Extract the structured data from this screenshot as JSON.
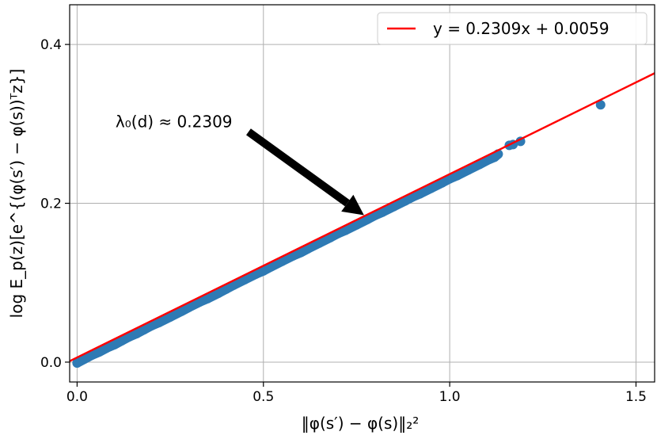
{
  "chart_data": {
    "type": "scatter",
    "title": "",
    "xlabel": "‖φ(s′) − φ(s)‖₂²",
    "ylabel": "log E_p(z)[e^{(φ(s′) − φ(s))ᵀz}]",
    "xlim": [
      -0.02,
      1.55
    ],
    "ylim": [
      -0.025,
      0.45
    ],
    "grid": true,
    "legend_position": "top-right",
    "x_ticks": [
      {
        "value": 0.0,
        "label": "0.0"
      },
      {
        "value": 0.5,
        "label": "0.5"
      },
      {
        "value": 1.0,
        "label": "1.0"
      },
      {
        "value": 1.5,
        "label": "1.5"
      }
    ],
    "y_ticks": [
      {
        "value": 0.0,
        "label": "0.0"
      },
      {
        "value": 0.2,
        "label": "0.2"
      },
      {
        "value": 0.4,
        "label": "0.4"
      }
    ],
    "scatter": {
      "color": "#2e7ab4",
      "x": [
        0.0,
        0.02,
        0.04,
        0.06,
        0.08,
        0.1,
        0.12,
        0.14,
        0.16,
        0.18,
        0.2,
        0.22,
        0.25,
        0.28,
        0.3,
        0.33,
        0.35,
        0.38,
        0.4,
        0.42,
        0.45,
        0.48,
        0.5,
        0.52,
        0.55,
        0.58,
        0.6,
        0.62,
        0.65,
        0.68,
        0.7,
        0.72,
        0.75,
        0.78,
        0.8,
        0.82,
        0.85,
        0.88,
        0.9,
        0.92,
        0.95,
        0.98,
        1.0,
        1.02,
        1.05,
        1.08,
        1.1,
        1.12,
        1.13,
        1.16,
        1.17,
        1.19,
        1.405
      ],
      "y": [
        -0.001,
        0.004,
        0.009,
        0.013,
        0.018,
        0.022,
        0.027,
        0.032,
        0.036,
        0.041,
        0.046,
        0.05,
        0.057,
        0.064,
        0.069,
        0.076,
        0.08,
        0.087,
        0.092,
        0.097,
        0.104,
        0.111,
        0.115,
        0.12,
        0.127,
        0.134,
        0.138,
        0.143,
        0.15,
        0.157,
        0.162,
        0.166,
        0.173,
        0.18,
        0.185,
        0.189,
        0.196,
        0.203,
        0.208,
        0.212,
        0.219,
        0.226,
        0.231,
        0.235,
        0.242,
        0.249,
        0.254,
        0.258,
        0.262,
        0.273,
        0.274,
        0.278,
        0.324
      ]
    },
    "series": [
      {
        "name": "y = 0.2309x + 0.0059",
        "type": "line",
        "color": "#ff0000",
        "slope": 0.2309,
        "intercept": 0.0059
      }
    ],
    "annotations": [
      {
        "text": "λ₀(d) ≈ 0.2309",
        "arrow_from": [
          0.46,
          0.29
        ],
        "arrow_to": [
          0.77,
          0.185
        ]
      }
    ]
  }
}
